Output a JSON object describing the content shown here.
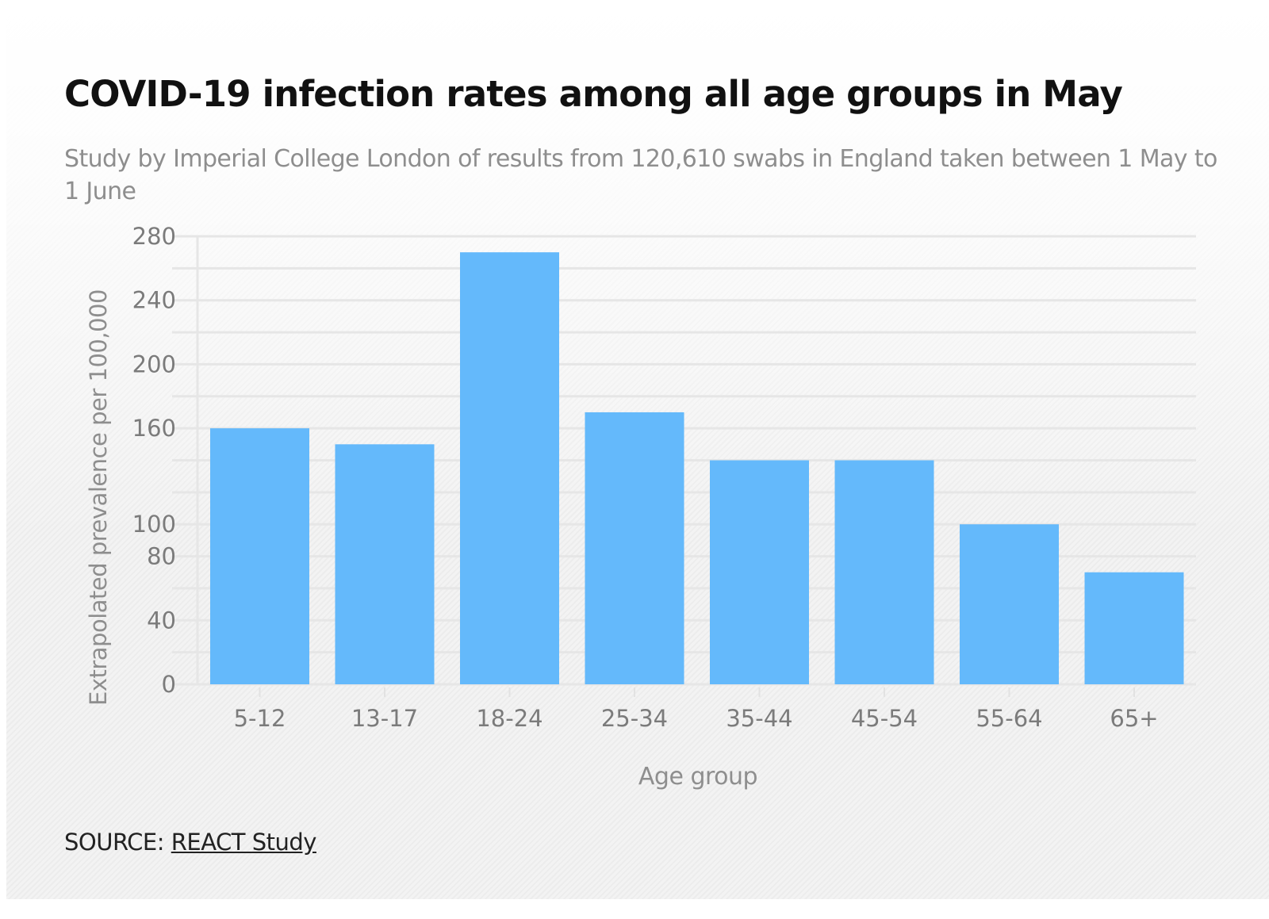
{
  "chart_data": {
    "type": "bar",
    "title": "COVID-19 infection rates among all age groups in May",
    "subtitle": "Study by Imperial College London of results from 120,610 swabs in England taken between 1 May to 1 June",
    "xlabel": "Age group",
    "ylabel": "Extrapolated prevalence per 100,000",
    "categories": [
      "5-12",
      "13-17",
      "18-24",
      "25-34",
      "35-44",
      "45-54",
      "55-64",
      "65+"
    ],
    "values": [
      160,
      150,
      270,
      170,
      140,
      140,
      100,
      70
    ],
    "ylim": [
      0,
      280
    ],
    "y_tick_labels": [
      "0",
      "40",
      "80",
      "100",
      "160",
      "200",
      "240",
      "280"
    ],
    "y_tick_values": [
      0,
      40,
      80,
      100,
      160,
      200,
      240,
      280
    ],
    "gridline_step": 20,
    "grid": true,
    "legend": "none",
    "bar_color": "#64B9FB"
  },
  "footer": {
    "source_prefix": "SOURCE: ",
    "source_link": "REACT Study"
  }
}
